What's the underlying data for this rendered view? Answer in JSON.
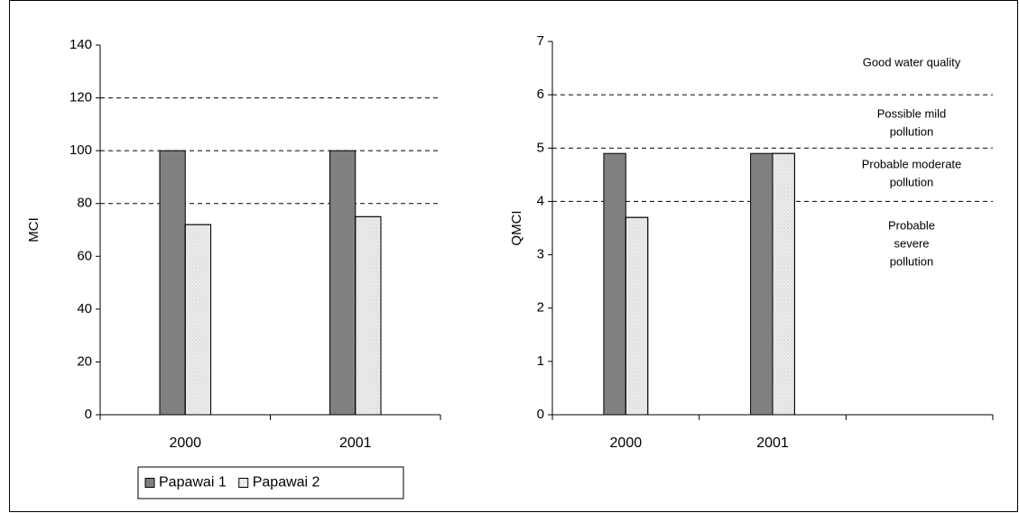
{
  "chart_data": [
    {
      "type": "bar",
      "y_label": "MCI",
      "categories": [
        "2000",
        "2001"
      ],
      "series": [
        {
          "name": "Papawai 1",
          "color": "#808080",
          "values": [
            100,
            100
          ]
        },
        {
          "name": "Papawai 2",
          "color": "#ececec",
          "values": [
            72,
            75
          ]
        }
      ],
      "ylim": [
        0,
        140
      ],
      "yticks": [
        0,
        20,
        40,
        60,
        80,
        100,
        120,
        140
      ],
      "reference_lines": [
        80,
        100,
        120
      ],
      "legend": "bottom"
    },
    {
      "type": "bar",
      "y_label": "QMCI",
      "categories": [
        "2000",
        "2001",
        null
      ],
      "series": [
        {
          "color": "#808080",
          "values": [
            4.9,
            4.9,
            null
          ]
        },
        {
          "color": "#ececec",
          "values": [
            3.7,
            4.9,
            null
          ]
        }
      ],
      "ylim": [
        0,
        7
      ],
      "yticks": [
        0,
        1,
        2,
        3,
        4,
        5,
        6,
        7
      ],
      "reference_lines": [
        4,
        5,
        6
      ],
      "annotations": [
        {
          "lines": [
            "Good water quality"
          ]
        },
        {
          "lines": [
            "Possible mild",
            "pollution"
          ]
        },
        {
          "lines": [
            "Probable moderate",
            "pollution"
          ]
        },
        {
          "lines": [
            "Probable",
            "severe",
            "pollution"
          ]
        }
      ]
    }
  ]
}
